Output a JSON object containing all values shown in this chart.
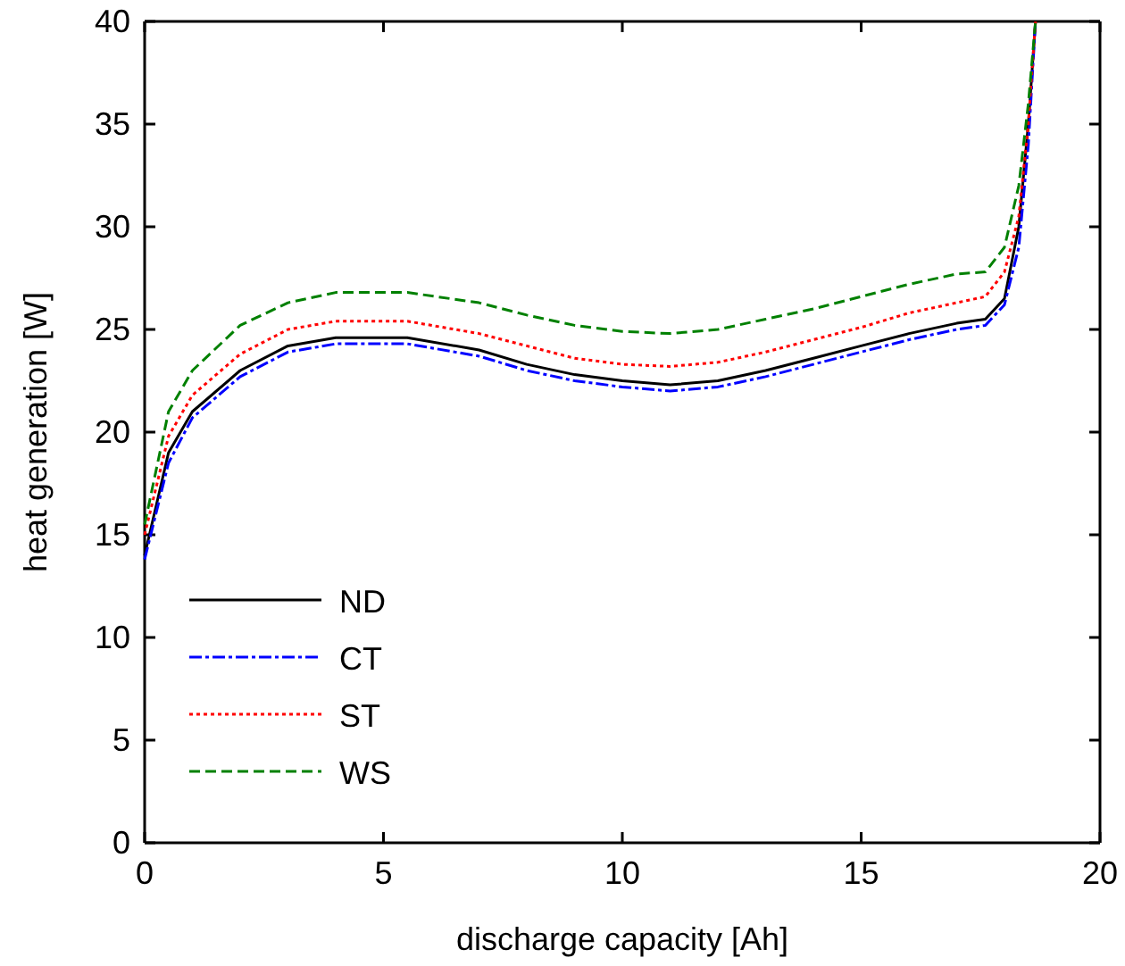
{
  "chart_data": {
    "type": "line",
    "xlabel": "discharge capacity [Ah]",
    "ylabel": "heat generation [W]",
    "xlim": [
      0,
      20
    ],
    "xticks": [
      0,
      5,
      10,
      15,
      20
    ],
    "ylim": [
      0,
      40
    ],
    "yticks": [
      0,
      5,
      10,
      15,
      20,
      25,
      30,
      35,
      40
    ],
    "legend": "bottom left",
    "grid": false,
    "x": [
      0,
      0.5,
      1,
      2,
      3,
      4,
      5.5,
      7,
      8,
      9,
      10,
      11,
      12,
      13,
      14,
      15,
      16,
      17,
      17.6,
      18,
      18.3,
      18.5,
      18.65
    ],
    "series": [
      {
        "name": "ND",
        "color": "#000000",
        "line_style": "solid",
        "values": [
          14,
          19,
          21,
          23,
          24.2,
          24.6,
          24.6,
          24,
          23.3,
          22.8,
          22.5,
          22.3,
          22.5,
          23,
          23.6,
          24.2,
          24.8,
          25.3,
          25.5,
          26.5,
          30,
          35,
          40
        ]
      },
      {
        "name": "CT",
        "color": "#0000ff",
        "line_style": "dashdot",
        "values": [
          13.8,
          18.5,
          20.7,
          22.7,
          23.9,
          24.3,
          24.3,
          23.7,
          23,
          22.5,
          22.2,
          22,
          22.2,
          22.7,
          23.3,
          23.9,
          24.5,
          25,
          25.2,
          26.2,
          29,
          34,
          40
        ]
      },
      {
        "name": "ST",
        "color": "#ff0000",
        "line_style": "dotted",
        "values": [
          15,
          19.8,
          21.8,
          23.8,
          25,
          25.4,
          25.4,
          24.8,
          24.2,
          23.6,
          23.3,
          23.2,
          23.4,
          23.9,
          24.5,
          25.1,
          25.8,
          26.3,
          26.6,
          27.8,
          30.5,
          35,
          40
        ]
      },
      {
        "name": "WS",
        "color": "#008000",
        "line_style": "dashed",
        "values": [
          15.5,
          21,
          23,
          25.2,
          26.3,
          26.8,
          26.8,
          26.3,
          25.7,
          25.2,
          24.9,
          24.8,
          25,
          25.5,
          26,
          26.6,
          27.2,
          27.7,
          27.8,
          29,
          32,
          36,
          40
        ]
      }
    ]
  }
}
